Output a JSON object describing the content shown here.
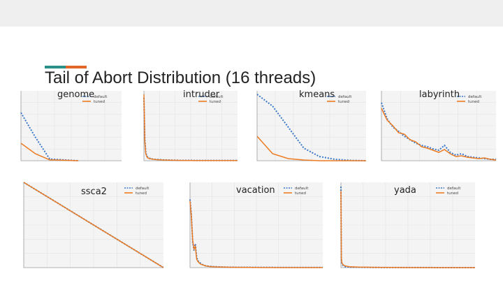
{
  "slide": {
    "title": "Tail of Abort Distribution (16 threads)",
    "accent_colors": [
      "#2b8f8a",
      "#e0662a"
    ]
  },
  "series_colors": {
    "default": "#3a78c9",
    "tuned": "#ec7b22"
  },
  "chart_data": [
    {
      "id": "genome",
      "type": "line",
      "title": "genome",
      "series": [
        {
          "name": "default",
          "style": "dashed",
          "x": [
            0,
            1,
            2,
            3,
            4
          ],
          "y": [
            0.55,
            0.27,
            0.02,
            0.01,
            0.0
          ]
        },
        {
          "name": "tuned",
          "style": "solid",
          "x": [
            0,
            1,
            2,
            3,
            4
          ],
          "y": [
            0.2,
            0.08,
            0.01,
            0.005,
            0.0
          ]
        }
      ],
      "xlim": [
        0,
        7
      ],
      "ylim": [
        0,
        0.8
      ]
    },
    {
      "id": "intruder",
      "type": "line",
      "title": "intruder",
      "series": [
        {
          "name": "default",
          "style": "dashed",
          "x": [
            0,
            1,
            2,
            3,
            4,
            6,
            8,
            10,
            14,
            20,
            30,
            40,
            60,
            100
          ],
          "y": [
            0.9,
            0.3,
            0.12,
            0.07,
            0.05,
            0.035,
            0.03,
            0.02,
            0.018,
            0.012,
            0.008,
            0.005,
            0.004,
            0.004
          ]
        },
        {
          "name": "tuned",
          "style": "solid",
          "x": [
            0,
            1,
            2,
            3,
            4,
            6,
            8,
            10,
            14,
            20,
            30,
            40,
            60,
            100
          ],
          "y": [
            0.95,
            0.28,
            0.1,
            0.06,
            0.04,
            0.03,
            0.025,
            0.02,
            0.015,
            0.01,
            0.006,
            0.004,
            0.003,
            0.003
          ]
        }
      ],
      "xlim": [
        0,
        100
      ],
      "ylim": [
        0,
        1.0
      ]
    },
    {
      "id": "kmeans",
      "type": "line",
      "title": "kmeans",
      "series": [
        {
          "name": "default",
          "style": "dashed",
          "x": [
            0,
            1,
            2,
            3,
            4,
            5,
            6,
            7
          ],
          "y": [
            0.95,
            0.78,
            0.48,
            0.18,
            0.06,
            0.02,
            0.005,
            0.0
          ]
        },
        {
          "name": "tuned",
          "style": "solid",
          "x": [
            0,
            1,
            2,
            3,
            4,
            5,
            6,
            7
          ],
          "y": [
            0.35,
            0.1,
            0.03,
            0.01,
            0.0,
            0.0,
            0.0,
            0.0
          ]
        }
      ],
      "xlim": [
        0,
        7
      ],
      "ylim": [
        0,
        1.0
      ]
    },
    {
      "id": "labyrinth",
      "type": "line",
      "title": "labyrinth",
      "series": [
        {
          "name": "default",
          "style": "dashed",
          "x": [
            0,
            1,
            2,
            3,
            4,
            5,
            6,
            7,
            8,
            9,
            10,
            11,
            12,
            13,
            14,
            15,
            16,
            17,
            18,
            19,
            20
          ],
          "y": [
            0.83,
            0.6,
            0.48,
            0.42,
            0.35,
            0.3,
            0.25,
            0.22,
            0.2,
            0.17,
            0.15,
            0.22,
            0.12,
            0.08,
            0.1,
            0.06,
            0.05,
            0.04,
            0.03,
            0.02,
            0.02
          ]
        },
        {
          "name": "tuned",
          "style": "solid",
          "x": [
            0,
            1,
            2,
            3,
            4,
            5,
            6,
            7,
            8,
            9,
            10,
            11,
            12,
            13,
            14,
            15,
            16,
            17,
            18,
            19,
            20
          ],
          "y": [
            0.75,
            0.58,
            0.5,
            0.4,
            0.38,
            0.3,
            0.27,
            0.2,
            0.18,
            0.15,
            0.12,
            0.16,
            0.1,
            0.06,
            0.07,
            0.05,
            0.04,
            0.03,
            0.04,
            0.02,
            0.01
          ]
        }
      ],
      "xlim": [
        0,
        20
      ],
      "ylim": [
        0,
        1.0
      ]
    },
    {
      "id": "ssca2",
      "type": "line",
      "title": "ssca2",
      "series": [
        {
          "name": "default",
          "style": "dashed",
          "x": [
            0,
            1
          ],
          "y": [
            1.0,
            0.0
          ]
        },
        {
          "name": "tuned",
          "style": "solid",
          "x": [
            0,
            1
          ],
          "y": [
            1.0,
            0.0
          ]
        }
      ],
      "xlim": [
        0,
        1
      ],
      "ylim": [
        0,
        1.0
      ]
    },
    {
      "id": "vacation",
      "type": "line",
      "title": "vacation",
      "series": [
        {
          "name": "default",
          "style": "dashed",
          "x": [
            0,
            1,
            2,
            3,
            4,
            5,
            6,
            8,
            10,
            12,
            15,
            20,
            30,
            50,
            80,
            100
          ],
          "y": [
            0.8,
            0.62,
            0.3,
            0.2,
            0.28,
            0.12,
            0.08,
            0.05,
            0.03,
            0.02,
            0.015,
            0.01,
            0.005,
            0.003,
            0.002,
            0.002
          ]
        },
        {
          "name": "tuned",
          "style": "solid",
          "x": [
            0,
            1,
            2,
            3,
            4,
            5,
            6,
            8,
            10,
            12,
            15,
            20,
            30,
            50,
            80,
            100
          ],
          "y": [
            0.78,
            0.6,
            0.32,
            0.22,
            0.25,
            0.1,
            0.07,
            0.04,
            0.03,
            0.02,
            0.012,
            0.008,
            0.004,
            0.002,
            0.001,
            0.001
          ]
        }
      ],
      "xlim": [
        0,
        100
      ],
      "ylim": [
        0,
        1.0
      ]
    },
    {
      "id": "yada",
      "type": "line",
      "title": "yada",
      "series": [
        {
          "name": "default",
          "style": "dashed",
          "x": [
            0,
            1,
            2,
            3,
            4,
            6,
            10,
            20,
            40,
            80,
            150,
            300
          ],
          "y": [
            0.95,
            0.1,
            0.05,
            0.04,
            0.03,
            0.02,
            0.01,
            0.006,
            0.004,
            0.002,
            0.001,
            0.0
          ]
        },
        {
          "name": "tuned",
          "style": "solid",
          "x": [
            0,
            1,
            2,
            3,
            4,
            6,
            10,
            20,
            40,
            80,
            150,
            300
          ],
          "y": [
            0.9,
            0.12,
            0.06,
            0.05,
            0.04,
            0.03,
            0.02,
            0.01,
            0.006,
            0.003,
            0.001,
            0.0
          ]
        }
      ],
      "xlim": [
        0,
        300
      ],
      "ylim": [
        0,
        1.0
      ]
    }
  ]
}
